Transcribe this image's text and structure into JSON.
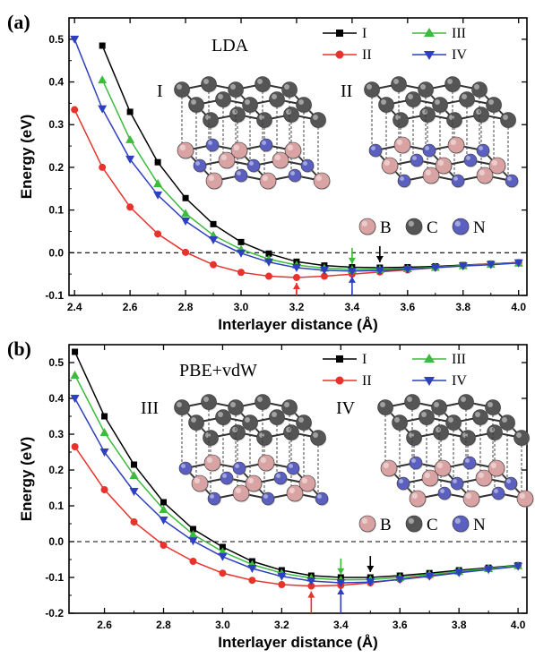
{
  "colors": {
    "I": "#000000",
    "II": "#e8322c",
    "III": "#3dbb3d",
    "IV": "#2e3fbf",
    "B": "#d9a3a3",
    "C": "#555555",
    "N": "#5a5fc0"
  },
  "icons": {
    "boron": "pink-sphere",
    "carbon": "grey-sphere",
    "nitrogen": "blue-sphere"
  },
  "atom_labels": [
    "B",
    "C",
    "N"
  ],
  "chart_data": [
    {
      "panel": "(a)",
      "method": "LDA",
      "type": "line",
      "xlabel": "Interlayer distance (Å)",
      "ylabel": "Energy (eV)",
      "xlim": [
        2.38,
        4.03
      ],
      "ylim": [
        -0.1,
        0.55
      ],
      "xticks": [
        "2.4",
        "2.6",
        "2.8",
        "3.0",
        "3.2",
        "3.4",
        "3.6",
        "3.8",
        "4.0"
      ],
      "yticks": [
        "-0.1",
        "0.0",
        "0.1",
        "0.2",
        "0.3",
        "0.4",
        "0.5"
      ],
      "reference_line": 0.0,
      "structure_labels": [
        "I",
        "II"
      ],
      "series": [
        {
          "name": "I",
          "marker": "square",
          "x": [
            2.5,
            2.6,
            2.7,
            2.8,
            2.9,
            3.0,
            3.1,
            3.2,
            3.3,
            3.4,
            3.5,
            3.6,
            3.7,
            3.8,
            3.9,
            4.0
          ],
          "y": [
            0.485,
            0.33,
            0.212,
            0.128,
            0.067,
            0.025,
            -0.002,
            -0.021,
            -0.03,
            -0.034,
            -0.035,
            -0.034,
            -0.032,
            -0.029,
            -0.026,
            -0.023
          ]
        },
        {
          "name": "II",
          "marker": "circle",
          "x": [
            2.4,
            2.5,
            2.6,
            2.7,
            2.8,
            2.9,
            3.0,
            3.1,
            3.2,
            3.3,
            3.4,
            3.5,
            3.6,
            3.7,
            3.8,
            3.9,
            4.0
          ],
          "y": [
            0.335,
            0.2,
            0.107,
            0.044,
            0.001,
            -0.028,
            -0.046,
            -0.055,
            -0.058,
            -0.055,
            -0.05,
            -0.045,
            -0.04,
            -0.035,
            -0.03,
            -0.026,
            -0.023
          ]
        },
        {
          "name": "III",
          "marker": "triangle-up",
          "x": [
            2.5,
            2.6,
            2.7,
            2.8,
            2.9,
            3.0,
            3.1,
            3.2,
            3.3,
            3.4,
            3.5,
            3.6,
            3.7,
            3.8,
            3.9,
            4.0
          ],
          "y": [
            0.405,
            0.265,
            0.162,
            0.092,
            0.041,
            0.008,
            -0.015,
            -0.029,
            -0.036,
            -0.039,
            -0.039,
            -0.037,
            -0.034,
            -0.03,
            -0.027,
            -0.024
          ]
        },
        {
          "name": "IV",
          "marker": "triangle-down",
          "x": [
            2.4,
            2.5,
            2.6,
            2.7,
            2.8,
            2.9,
            3.0,
            3.1,
            3.2,
            3.3,
            3.4,
            3.5,
            3.6,
            3.7,
            3.8,
            3.9,
            4.0
          ],
          "y": [
            0.5,
            0.337,
            0.219,
            0.135,
            0.074,
            0.03,
            -0.001,
            -0.022,
            -0.035,
            -0.041,
            -0.043,
            -0.042,
            -0.039,
            -0.035,
            -0.031,
            -0.028,
            -0.024
          ]
        }
      ],
      "minimum_arrows": [
        {
          "series": "II",
          "x": 3.2
        },
        {
          "series": "IV",
          "x": 3.4
        },
        {
          "series": "III",
          "x": 3.4
        },
        {
          "series": "I",
          "x": 3.5
        }
      ]
    },
    {
      "panel": "(b)",
      "method": "PBE+vdW",
      "type": "line",
      "xlabel": "Interlayer distance (Å)",
      "ylabel": "Energy (eV)",
      "xlim": [
        2.48,
        4.03
      ],
      "ylim": [
        -0.2,
        0.55
      ],
      "xticks": [
        "2.6",
        "2.8",
        "3.0",
        "3.2",
        "3.4",
        "3.6",
        "3.8",
        "4.0"
      ],
      "yticks": [
        "-0.2",
        "-0.1",
        "0.0",
        "0.1",
        "0.2",
        "0.3",
        "0.4",
        "0.5"
      ],
      "reference_line": 0.0,
      "structure_labels": [
        "III",
        "IV"
      ],
      "series": [
        {
          "name": "I",
          "marker": "square",
          "x": [
            2.5,
            2.6,
            2.7,
            2.8,
            2.9,
            3.0,
            3.1,
            3.2,
            3.3,
            3.4,
            3.5,
            3.6,
            3.7,
            3.8,
            3.9,
            4.0
          ],
          "y": [
            0.53,
            0.35,
            0.215,
            0.11,
            0.035,
            -0.015,
            -0.055,
            -0.08,
            -0.095,
            -0.1,
            -0.1,
            -0.095,
            -0.088,
            -0.08,
            -0.073,
            -0.066
          ]
        },
        {
          "name": "II",
          "marker": "circle",
          "x": [
            2.5,
            2.6,
            2.7,
            2.8,
            2.9,
            3.0,
            3.1,
            3.2,
            3.3,
            3.4,
            3.5,
            3.6,
            3.7,
            3.8,
            3.9,
            4.0
          ],
          "y": [
            0.265,
            0.145,
            0.055,
            -0.01,
            -0.055,
            -0.088,
            -0.108,
            -0.12,
            -0.124,
            -0.122,
            -0.115,
            -0.105,
            -0.095,
            -0.085,
            -0.076,
            -0.068
          ]
        },
        {
          "name": "III",
          "marker": "triangle-up",
          "x": [
            2.5,
            2.6,
            2.7,
            2.8,
            2.9,
            3.0,
            3.1,
            3.2,
            3.3,
            3.4,
            3.5,
            3.6,
            3.7,
            3.8,
            3.9,
            4.0
          ],
          "y": [
            0.465,
            0.305,
            0.185,
            0.09,
            0.02,
            -0.028,
            -0.064,
            -0.088,
            -0.102,
            -0.107,
            -0.106,
            -0.1,
            -0.092,
            -0.083,
            -0.075,
            -0.067
          ]
        },
        {
          "name": "IV",
          "marker": "triangle-down",
          "x": [
            2.5,
            2.6,
            2.7,
            2.8,
            2.9,
            3.0,
            3.1,
            3.2,
            3.3,
            3.4,
            3.5,
            3.6,
            3.7,
            3.8,
            3.9,
            4.0
          ],
          "y": [
            0.4,
            0.25,
            0.14,
            0.06,
            0.002,
            -0.042,
            -0.075,
            -0.097,
            -0.11,
            -0.115,
            -0.113,
            -0.106,
            -0.097,
            -0.087,
            -0.078,
            -0.069
          ]
        }
      ],
      "minimum_arrows": [
        {
          "series": "II",
          "x": 3.3
        },
        {
          "series": "IV",
          "x": 3.4
        },
        {
          "series": "III",
          "x": 3.4
        },
        {
          "series": "I",
          "x": 3.5
        }
      ]
    }
  ]
}
